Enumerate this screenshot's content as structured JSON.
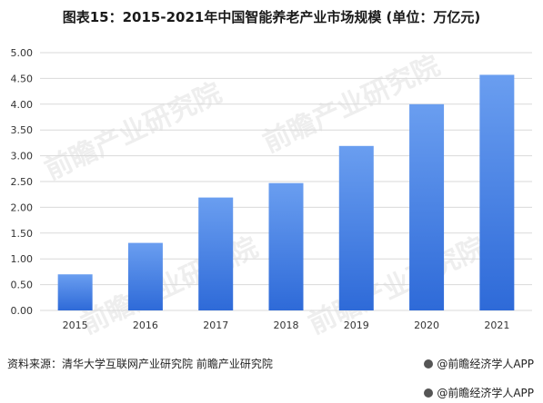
{
  "title": "图表15：2015-2021年中国智能养老产业市场规模 (单位：万亿元)",
  "source": "资料来源：清华大学互联网产业研究院 前瞻产业研究院",
  "brand": "@前瞻经济学人APP",
  "brand_footer": "@前瞻经济学人APP",
  "watermark": "前瞻产业研究院",
  "colors": {
    "bar_top": "#6a9ef0",
    "bar_bottom": "#2e6ad8",
    "grid": "#d9d9d9"
  },
  "chart_data": {
    "type": "bar",
    "categories": [
      "2015",
      "2016",
      "2017",
      "2018",
      "2019",
      "2020",
      "2021"
    ],
    "values": [
      0.7,
      1.31,
      2.19,
      2.47,
      3.19,
      4.0,
      4.57
    ],
    "ylim": [
      0,
      5
    ],
    "yticks": [
      "0.00",
      "0.50",
      "1.00",
      "1.50",
      "2.00",
      "2.50",
      "3.00",
      "3.50",
      "4.00",
      "4.50",
      "5.00"
    ],
    "grid": true
  }
}
